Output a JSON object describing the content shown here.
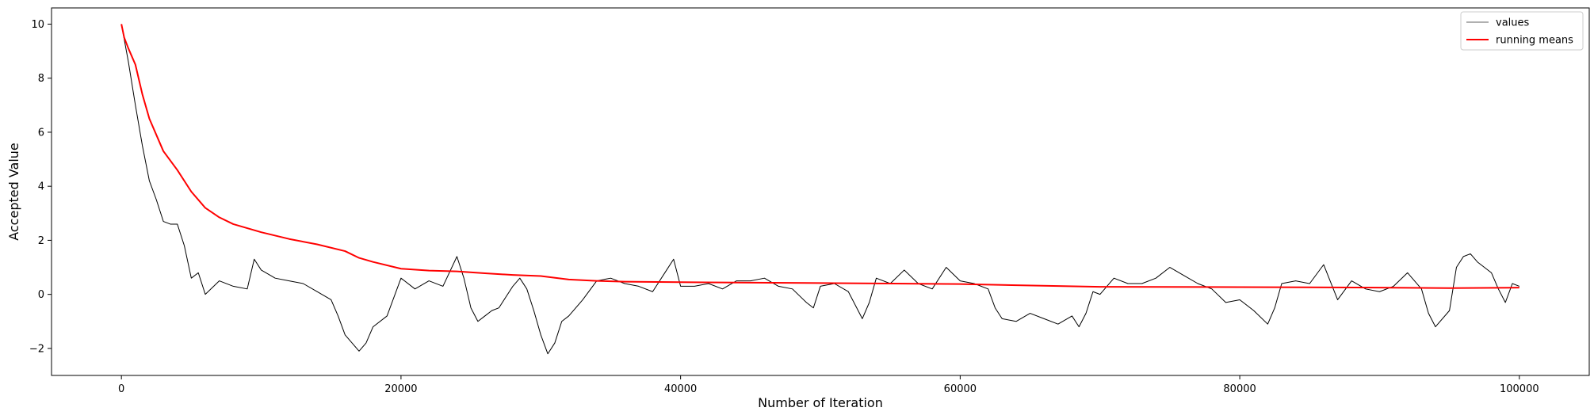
{
  "chart_data": {
    "type": "line",
    "title": "",
    "xlabel": "Number of Iteration",
    "ylabel": "Accepted Value",
    "xlim": [
      -5000,
      105000
    ],
    "ylim": [
      -3,
      10.6
    ],
    "x_ticks": [
      0,
      20000,
      40000,
      60000,
      80000,
      100000
    ],
    "x_tick_labels": [
      "0",
      "20000",
      "40000",
      "60000",
      "80000",
      "100000"
    ],
    "y_ticks": [
      -2,
      0,
      2,
      4,
      6,
      8,
      10
    ],
    "y_tick_labels": [
      "−2",
      "0",
      "2",
      "4",
      "6",
      "8",
      "10"
    ],
    "grid": false,
    "legend_position": "top-right",
    "series": [
      {
        "name": "values",
        "color": "#000000",
        "x": [
          0,
          500,
          1000,
          1500,
          2000,
          2500,
          3000,
          3500,
          4000,
          4500,
          5000,
          5500,
          6000,
          7000,
          8000,
          9000,
          9500,
          10000,
          11000,
          12000,
          13000,
          14000,
          15000,
          15500,
          16000,
          16500,
          17000,
          17500,
          18000,
          19000,
          20000,
          21000,
          22000,
          23000,
          24000,
          24500,
          25000,
          25500,
          26000,
          26500,
          27000,
          28000,
          28500,
          29000,
          29500,
          30000,
          30500,
          31000,
          31500,
          32000,
          33000,
          34000,
          35000,
          36000,
          37000,
          38000,
          39000,
          39500,
          40000,
          41000,
          42000,
          43000,
          44000,
          45000,
          46000,
          47000,
          48000,
          49000,
          49500,
          50000,
          51000,
          52000,
          53000,
          53500,
          54000,
          55000,
          56000,
          57000,
          58000,
          59000,
          60000,
          61000,
          62000,
          62500,
          63000,
          64000,
          65000,
          66000,
          67000,
          68000,
          68500,
          69000,
          69500,
          70000,
          71000,
          72000,
          73000,
          74000,
          75000,
          76000,
          77000,
          78000,
          79000,
          80000,
          81000,
          82000,
          82500,
          83000,
          84000,
          85000,
          86000,
          87000,
          88000,
          89000,
          90000,
          91000,
          92000,
          93000,
          93500,
          94000,
          95000,
          95500,
          96000,
          96500,
          97000,
          98000,
          98500,
          99000,
          99500,
          100000
        ],
        "y": [
          10.0,
          8.6,
          7.0,
          5.5,
          4.2,
          3.5,
          2.7,
          2.6,
          2.6,
          1.8,
          0.6,
          0.8,
          0.0,
          0.5,
          0.3,
          0.2,
          1.3,
          0.9,
          0.6,
          0.5,
          0.4,
          0.1,
          -0.2,
          -0.8,
          -1.5,
          -1.8,
          -2.1,
          -1.8,
          -1.2,
          -0.8,
          0.6,
          0.2,
          0.5,
          0.3,
          1.4,
          0.6,
          -0.5,
          -1.0,
          -0.8,
          -0.6,
          -0.5,
          0.3,
          0.6,
          0.2,
          -0.6,
          -1.5,
          -2.2,
          -1.8,
          -1.0,
          -0.8,
          -0.2,
          0.5,
          0.6,
          0.4,
          0.3,
          0.1,
          0.9,
          1.3,
          0.3,
          0.3,
          0.4,
          0.2,
          0.5,
          0.5,
          0.6,
          0.3,
          0.2,
          -0.3,
          -0.5,
          0.3,
          0.4,
          0.1,
          -0.9,
          -0.3,
          0.6,
          0.4,
          0.9,
          0.4,
          0.2,
          1.0,
          0.5,
          0.4,
          0.2,
          -0.5,
          -0.9,
          -1.0,
          -0.7,
          -0.9,
          -1.1,
          -0.8,
          -1.2,
          -0.7,
          0.1,
          0.0,
          0.6,
          0.4,
          0.4,
          0.6,
          1.0,
          0.7,
          0.4,
          0.2,
          -0.3,
          -0.2,
          -0.6,
          -1.1,
          -0.5,
          0.4,
          0.5,
          0.4,
          1.1,
          -0.2,
          0.5,
          0.2,
          0.1,
          0.3,
          0.8,
          0.2,
          -0.7,
          -1.2,
          -0.6,
          1.0,
          1.4,
          1.5,
          1.2,
          0.8,
          0.2,
          -0.3,
          0.4,
          0.3
        ]
      },
      {
        "name": "running means",
        "color": "#ff0000",
        "x": [
          0,
          200,
          500,
          1000,
          1500,
          2000,
          3000,
          4000,
          5000,
          6000,
          7000,
          8000,
          10000,
          12000,
          14000,
          16000,
          17000,
          18000,
          20000,
          22000,
          24000,
          26000,
          28000,
          30000,
          32000,
          34000,
          36000,
          40000,
          50000,
          60000,
          70000,
          80000,
          90000,
          95000,
          100000
        ],
        "y": [
          10.0,
          9.5,
          9.1,
          8.5,
          7.4,
          6.5,
          5.3,
          4.6,
          3.8,
          3.2,
          2.85,
          2.6,
          2.3,
          2.05,
          1.85,
          1.6,
          1.35,
          1.2,
          0.95,
          0.88,
          0.85,
          0.78,
          0.72,
          0.68,
          0.55,
          0.5,
          0.47,
          0.45,
          0.42,
          0.38,
          0.28,
          0.27,
          0.25,
          0.23,
          0.25
        ]
      }
    ]
  }
}
